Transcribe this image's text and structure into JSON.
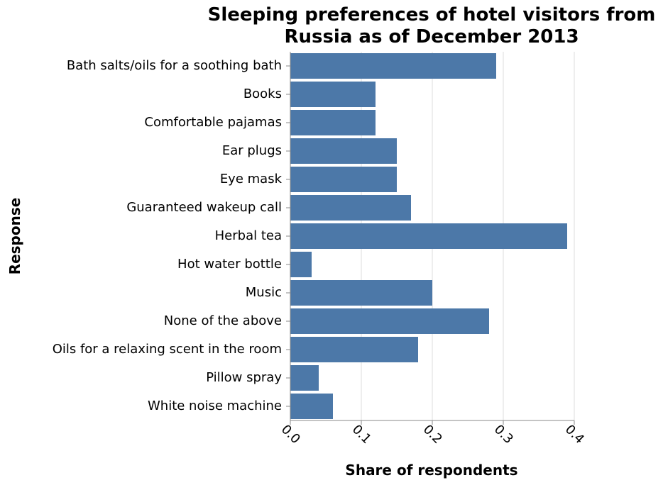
{
  "chart_data": {
    "type": "bar",
    "orientation": "horizontal",
    "title": "Sleeping preferences of hotel visitors from Russia as of December 2013",
    "title_lines": [
      "Sleeping preferences of hotel visitors from",
      "Russia as of December 2013"
    ],
    "xlabel": "Share of respondents",
    "ylabel": "Response",
    "xlim": [
      0,
      0.4
    ],
    "xticks": [
      "0.0",
      "0.1",
      "0.2",
      "0.3",
      "0.4"
    ],
    "grid": true,
    "bar_color": "#4c78a8",
    "categories": [
      "Bath salts/oils for a soothing bath",
      "Books",
      "Comfortable pajamas",
      "Ear plugs",
      "Eye mask",
      "Guaranteed wakeup call",
      "Herbal tea",
      "Hot water bottle",
      "Music",
      "None of the above",
      "Oils for a relaxing scent in the room",
      "Pillow spray",
      "White noise machine"
    ],
    "values": [
      0.29,
      0.12,
      0.12,
      0.15,
      0.15,
      0.17,
      0.39,
      0.03,
      0.2,
      0.28,
      0.18,
      0.04,
      0.06
    ]
  }
}
